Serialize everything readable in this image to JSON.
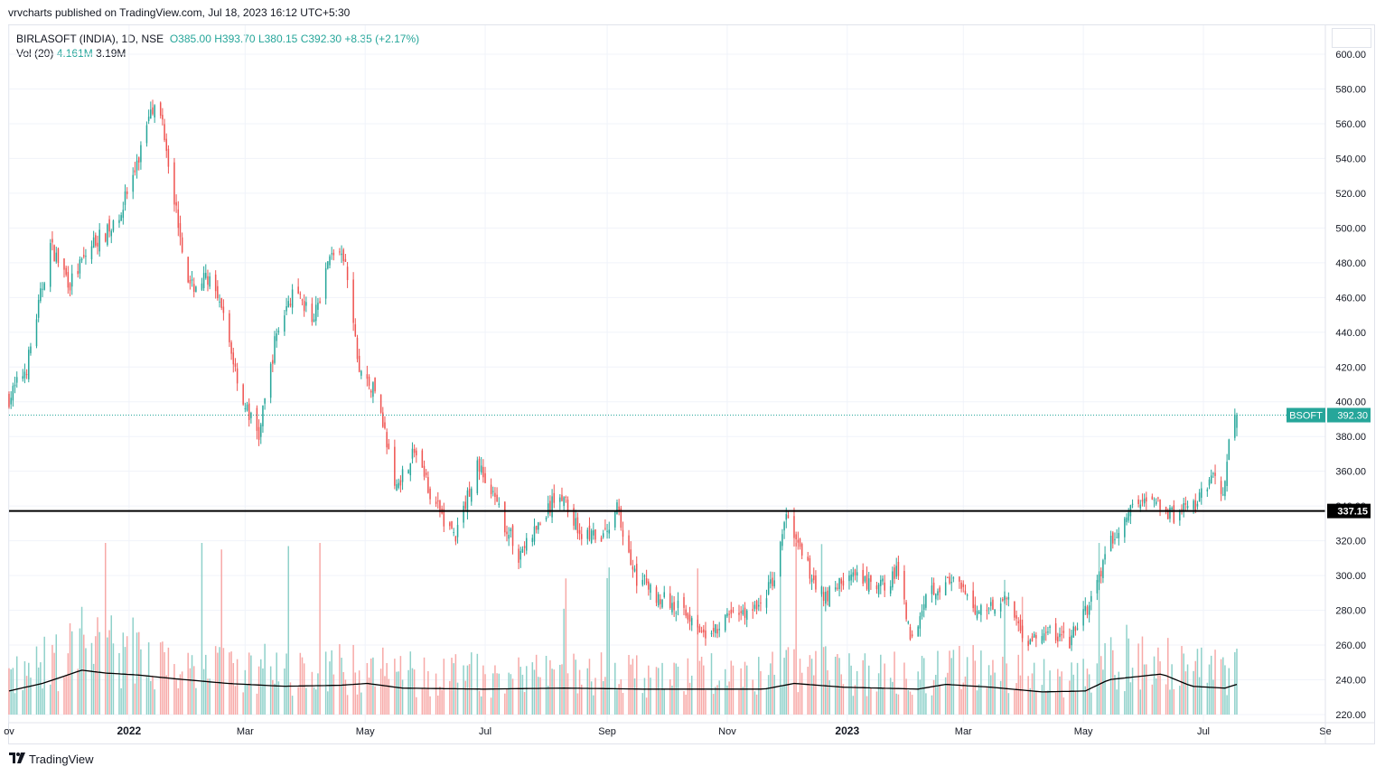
{
  "header": {
    "published_by": "vrvcharts published on TradingView.com, Jul 18, 2023 16:12 UTC+5:30"
  },
  "legend": {
    "symbol": "BIRLASOFT (INDIA), 1D, NSE",
    "open": "O385.00",
    "high": "H393.70",
    "low": "L380.15",
    "close": "C392.30",
    "change": "+8.35 (+2.17%)",
    "vol_label": "Vol (20)",
    "vol_value": "4.161M",
    "vol_ma": "3.19M"
  },
  "footer": {
    "brand": "TradingView"
  },
  "colors": {
    "up": "#26a69a",
    "down": "#ef5350",
    "up_vol": "#8fd1ca",
    "down_vol": "#f7a9a7",
    "grid": "#f0f3fa",
    "axis_text": "#131722",
    "hline": "#000000",
    "badge": "#26a69a"
  },
  "chart_data": {
    "type": "candlestick",
    "y_axis_ticks": [
      "600.00",
      "580.00",
      "560.00",
      "540.00",
      "520.00",
      "500.00",
      "480.00",
      "460.00",
      "440.00",
      "420.00",
      "400.00",
      "380.00",
      "360.00",
      "340.00",
      "320.00",
      "300.00",
      "280.00",
      "260.00",
      "240.00",
      "220.00"
    ],
    "ylim": [
      220,
      600
    ],
    "x_axis_ticks": [
      {
        "label": "ov",
        "date": "2021-11-01",
        "bold": false
      },
      {
        "label": "2022",
        "date": "2022-01-01",
        "bold": true
      },
      {
        "label": "Mar",
        "date": "2022-03-01",
        "bold": false
      },
      {
        "label": "May",
        "date": "2022-05-01",
        "bold": false
      },
      {
        "label": "Jul",
        "date": "2022-07-01",
        "bold": false
      },
      {
        "label": "Sep",
        "date": "2022-09-01",
        "bold": false
      },
      {
        "label": "Nov",
        "date": "2022-11-01",
        "bold": false
      },
      {
        "label": "2023",
        "date": "2023-01-01",
        "bold": true
      },
      {
        "label": "Mar",
        "date": "2023-03-01",
        "bold": false
      },
      {
        "label": "May",
        "date": "2023-05-01",
        "bold": false
      },
      {
        "label": "Jul",
        "date": "2023-07-01",
        "bold": false
      },
      {
        "label": "Se",
        "date": "2023-09-01",
        "bold": false
      }
    ],
    "xlim": [
      "2021-11-01",
      "2023-09-01"
    ],
    "horizontal_line": {
      "value": 337.15,
      "label": "337.15"
    },
    "last_price": {
      "value": 392.3,
      "ticker": "BSOFT",
      "label": "392.30"
    },
    "close_path_anchors": [
      {
        "date": "2021-11-01",
        "close": 402
      },
      {
        "date": "2021-11-10",
        "close": 420
      },
      {
        "date": "2021-11-22",
        "close": 490
      },
      {
        "date": "2021-12-02",
        "close": 468
      },
      {
        "date": "2021-12-14",
        "close": 492
      },
      {
        "date": "2021-12-24",
        "close": 500
      },
      {
        "date": "2022-01-05",
        "close": 535
      },
      {
        "date": "2022-01-12",
        "close": 572
      },
      {
        "date": "2022-01-18",
        "close": 562
      },
      {
        "date": "2022-01-25",
        "close": 510
      },
      {
        "date": "2022-02-01",
        "close": 465
      },
      {
        "date": "2022-02-10",
        "close": 472
      },
      {
        "date": "2022-02-18",
        "close": 448
      },
      {
        "date": "2022-02-28",
        "close": 400
      },
      {
        "date": "2022-03-08",
        "close": 380
      },
      {
        "date": "2022-03-17",
        "close": 440
      },
      {
        "date": "2022-03-25",
        "close": 462
      },
      {
        "date": "2022-04-05",
        "close": 448
      },
      {
        "date": "2022-04-14",
        "close": 488
      },
      {
        "date": "2022-04-21",
        "close": 478
      },
      {
        "date": "2022-04-28",
        "close": 418
      },
      {
        "date": "2022-05-08",
        "close": 402
      },
      {
        "date": "2022-05-16",
        "close": 350
      },
      {
        "date": "2022-05-26",
        "close": 372
      },
      {
        "date": "2022-06-06",
        "close": 340
      },
      {
        "date": "2022-06-16",
        "close": 322
      },
      {
        "date": "2022-06-27",
        "close": 365
      },
      {
        "date": "2022-07-06",
        "close": 342
      },
      {
        "date": "2022-07-18",
        "close": 312
      },
      {
        "date": "2022-07-29",
        "close": 330
      },
      {
        "date": "2022-08-08",
        "close": 348
      },
      {
        "date": "2022-08-18",
        "close": 325
      },
      {
        "date": "2022-08-29",
        "close": 320
      },
      {
        "date": "2022-09-06",
        "close": 338
      },
      {
        "date": "2022-09-15",
        "close": 300
      },
      {
        "date": "2022-09-27",
        "close": 288
      },
      {
        "date": "2022-10-10",
        "close": 280
      },
      {
        "date": "2022-10-24",
        "close": 265
      },
      {
        "date": "2022-11-03",
        "close": 278
      },
      {
        "date": "2022-11-15",
        "close": 280
      },
      {
        "date": "2022-11-24",
        "close": 296
      },
      {
        "date": "2022-12-01",
        "close": 335
      },
      {
        "date": "2022-12-09",
        "close": 310
      },
      {
        "date": "2022-12-20",
        "close": 288
      },
      {
        "date": "2023-01-02",
        "close": 300
      },
      {
        "date": "2023-01-16",
        "close": 292
      },
      {
        "date": "2023-01-27",
        "close": 302
      },
      {
        "date": "2023-02-03",
        "close": 262
      },
      {
        "date": "2023-02-10",
        "close": 292
      },
      {
        "date": "2023-02-24",
        "close": 296
      },
      {
        "date": "2023-03-08",
        "close": 280
      },
      {
        "date": "2023-03-22",
        "close": 287
      },
      {
        "date": "2023-04-03",
        "close": 262
      },
      {
        "date": "2023-04-14",
        "close": 267
      },
      {
        "date": "2023-04-24",
        "close": 262
      },
      {
        "date": "2023-05-05",
        "close": 286
      },
      {
        "date": "2023-05-15",
        "close": 318
      },
      {
        "date": "2023-05-26",
        "close": 340
      },
      {
        "date": "2023-06-06",
        "close": 345
      },
      {
        "date": "2023-06-15",
        "close": 334
      },
      {
        "date": "2023-06-26",
        "close": 340
      },
      {
        "date": "2023-07-06",
        "close": 355
      },
      {
        "date": "2023-07-12",
        "close": 350
      },
      {
        "date": "2023-07-14",
        "close": 382
      },
      {
        "date": "2023-07-18",
        "close": 392.3
      }
    ],
    "volume_ma_anchors": [
      {
        "date": "2021-11-01",
        "v": 0.25
      },
      {
        "date": "2021-11-18",
        "v": 0.33
      },
      {
        "date": "2021-12-08",
        "v": 0.47
      },
      {
        "date": "2021-12-20",
        "v": 0.44
      },
      {
        "date": "2022-01-05",
        "v": 0.42
      },
      {
        "date": "2022-01-24",
        "v": 0.38
      },
      {
        "date": "2022-02-20",
        "v": 0.33
      },
      {
        "date": "2022-03-20",
        "v": 0.3
      },
      {
        "date": "2022-04-18",
        "v": 0.31
      },
      {
        "date": "2022-05-02",
        "v": 0.33
      },
      {
        "date": "2022-05-20",
        "v": 0.28
      },
      {
        "date": "2022-06-30",
        "v": 0.27
      },
      {
        "date": "2022-08-10",
        "v": 0.28
      },
      {
        "date": "2022-09-20",
        "v": 0.27
      },
      {
        "date": "2022-11-20",
        "v": 0.27
      },
      {
        "date": "2022-12-05",
        "v": 0.33
      },
      {
        "date": "2022-12-30",
        "v": 0.29
      },
      {
        "date": "2023-02-06",
        "v": 0.27
      },
      {
        "date": "2023-02-20",
        "v": 0.32
      },
      {
        "date": "2023-03-15",
        "v": 0.29
      },
      {
        "date": "2023-04-10",
        "v": 0.24
      },
      {
        "date": "2023-05-02",
        "v": 0.25
      },
      {
        "date": "2023-05-14",
        "v": 0.37
      },
      {
        "date": "2023-06-10",
        "v": 0.43
      },
      {
        "date": "2023-06-25",
        "v": 0.3
      },
      {
        "date": "2023-07-12",
        "v": 0.28
      },
      {
        "date": "2023-07-18",
        "v": 0.32
      }
    ]
  }
}
